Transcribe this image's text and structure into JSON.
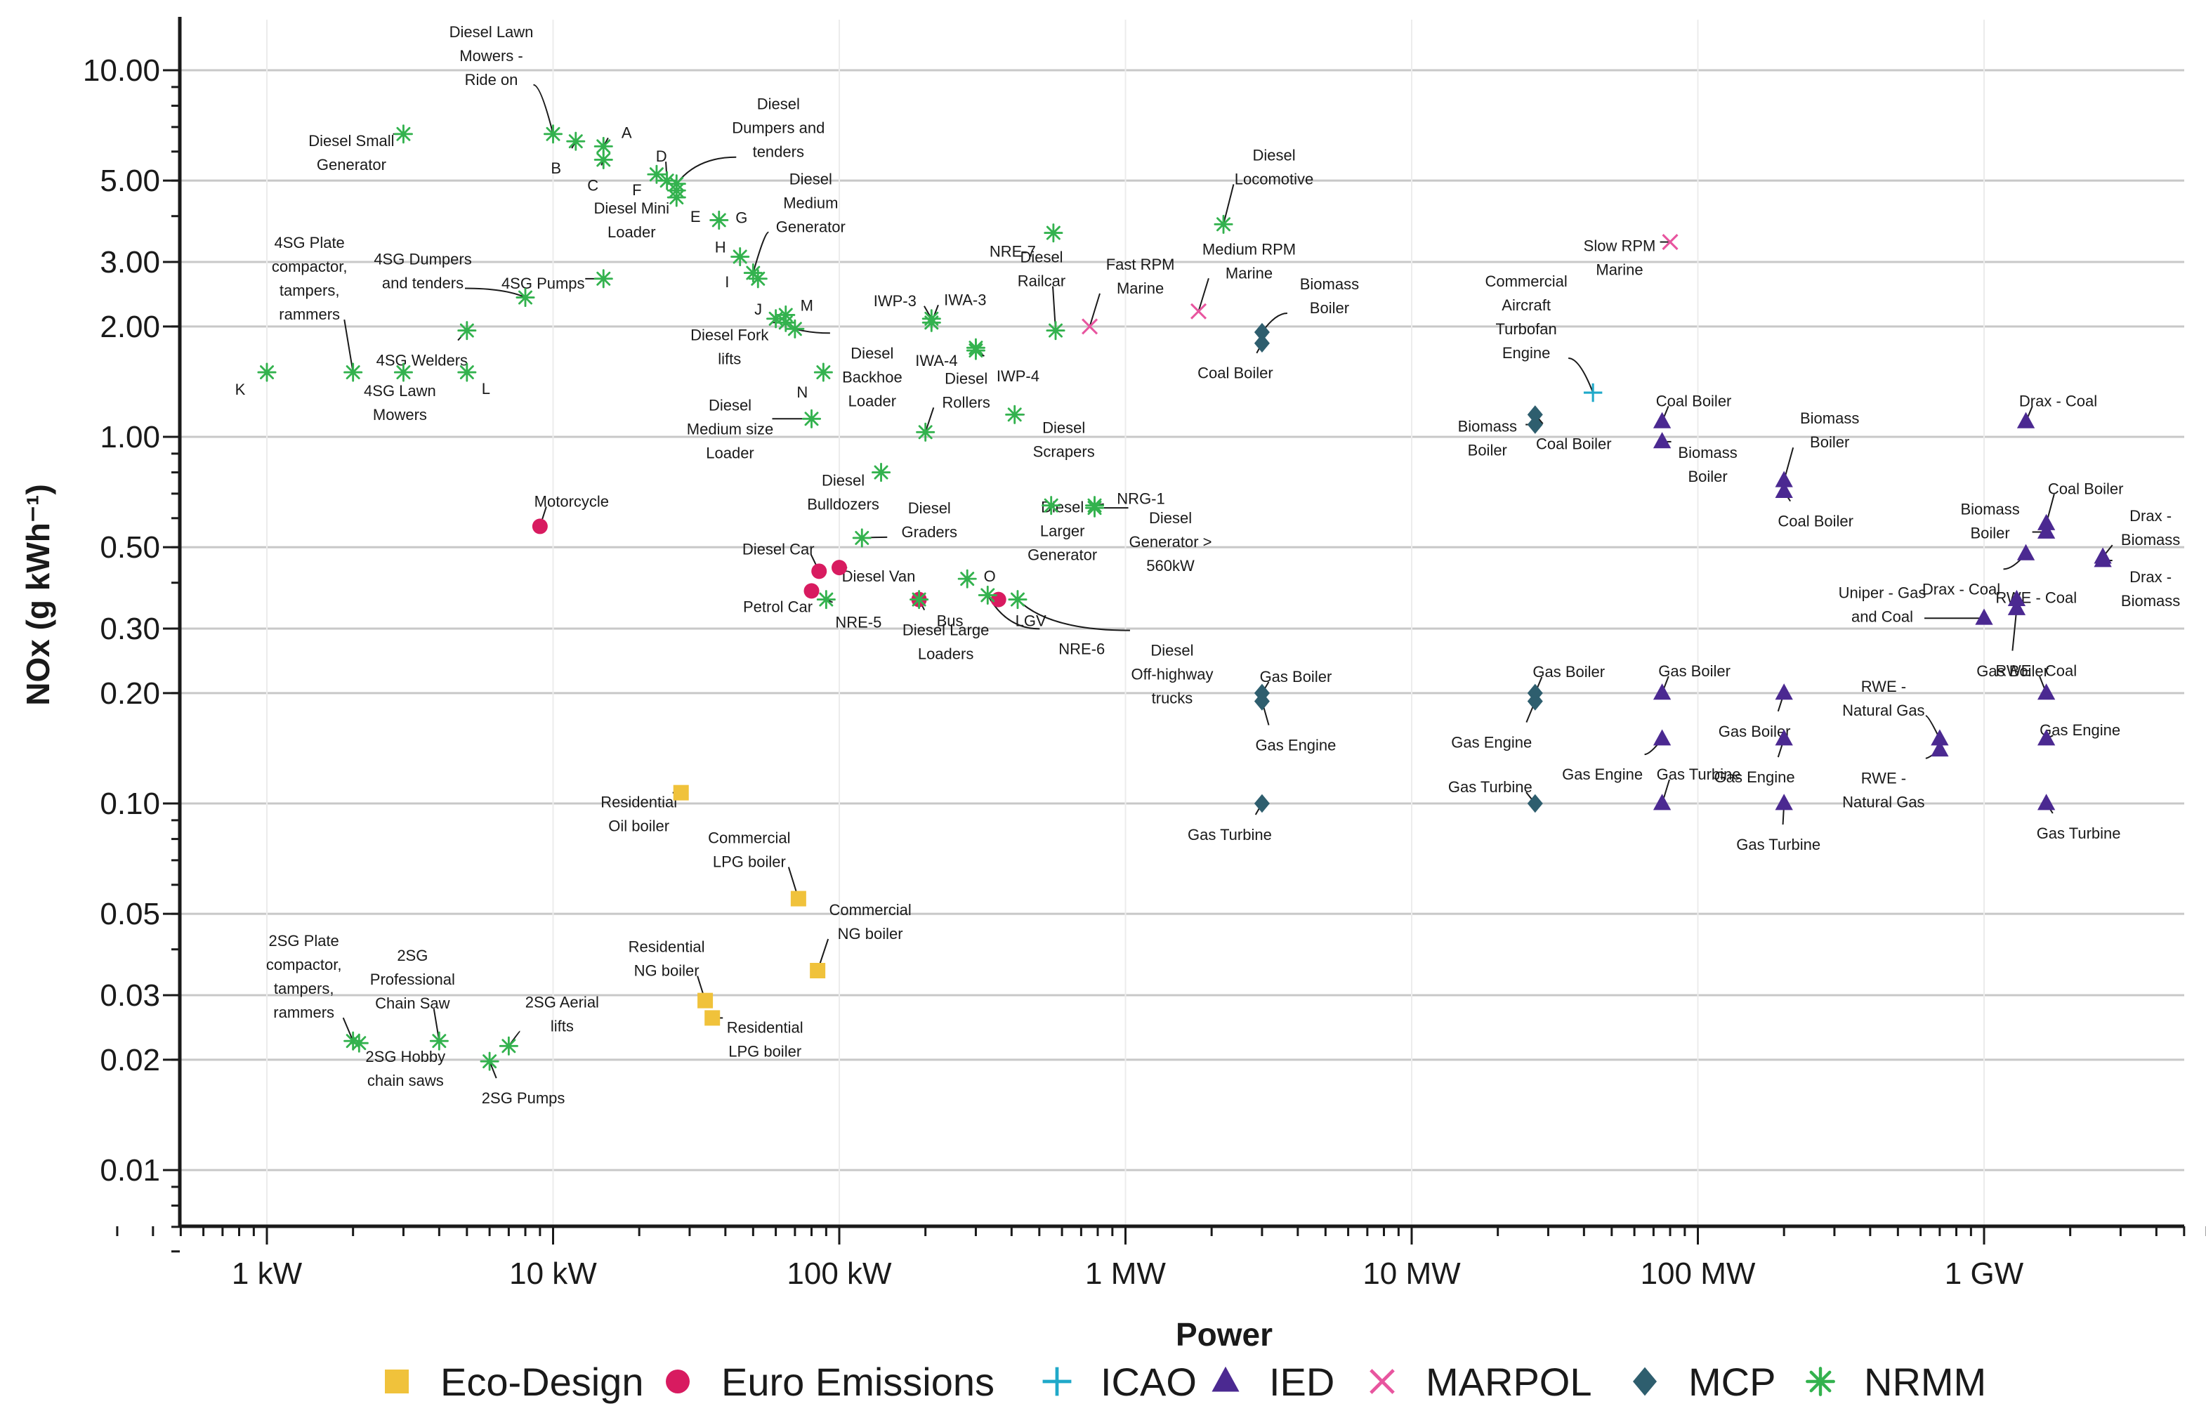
{
  "chart_data": {
    "type": "scatter",
    "title": "",
    "xlabel": "Power",
    "ylabel": "NOx (g kWh⁻¹)",
    "x_scale": "log",
    "y_scale": "log",
    "x_unit": "W",
    "y_unit": "g/kWh",
    "xlim": [
      300,
      6000000000
    ],
    "ylim": [
      0.006,
      15
    ],
    "grid": "horizontal",
    "legend_position": "bottom",
    "x_ticks": [
      {
        "value": 1000,
        "label": "1 kW"
      },
      {
        "value": 10000,
        "label": "10 kW"
      },
      {
        "value": 100000,
        "label": "100 kW"
      },
      {
        "value": 1000000,
        "label": "1 MW"
      },
      {
        "value": 10000000,
        "label": "10 MW"
      },
      {
        "value": 100000000,
        "label": "100 MW"
      },
      {
        "value": 1000000000,
        "label": "1 GW"
      }
    ],
    "y_ticks": [
      {
        "value": 0.01,
        "label": "0.01"
      },
      {
        "value": 0.02,
        "label": "0.02"
      },
      {
        "value": 0.03,
        "label": "0.03"
      },
      {
        "value": 0.05,
        "label": "0.05"
      },
      {
        "value": 0.1,
        "label": "0.10"
      },
      {
        "value": 0.2,
        "label": "0.20"
      },
      {
        "value": 0.3,
        "label": "0.30"
      },
      {
        "value": 0.5,
        "label": "0.50"
      },
      {
        "value": 1,
        "label": "1.00"
      },
      {
        "value": 2,
        "label": "2.00"
      },
      {
        "value": 3,
        "label": "3.00"
      },
      {
        "value": 5,
        "label": "5.00"
      },
      {
        "value": 10,
        "label": "10.00"
      }
    ],
    "series": [
      {
        "name": "Eco-Design",
        "marker": "square",
        "color": "#f0c23b",
        "points": [
          {
            "x": 28000,
            "y": 0.107,
            "label": "Residential\nOil boiler"
          },
          {
            "x": 72000,
            "y": 0.055,
            "label": "Commercial\nLPG boiler"
          },
          {
            "x": 84000,
            "y": 0.035,
            "label": "Commercial\nNG boiler"
          },
          {
            "x": 34000,
            "y": 0.029,
            "label": "Residential\nNG boiler"
          },
          {
            "x": 36000,
            "y": 0.026,
            "label": "Residential\nLPG boiler"
          }
        ]
      },
      {
        "name": "Euro Emissions",
        "marker": "circle",
        "color": "#d81b60",
        "points": [
          {
            "x": 9000,
            "y": 0.57,
            "label": "Motorcycle"
          },
          {
            "x": 85000,
            "y": 0.43,
            "label": "Diesel Car"
          },
          {
            "x": 80000,
            "y": 0.38,
            "label": "Petrol Car"
          },
          {
            "x": 100000,
            "y": 0.44,
            "label": "Diesel Van"
          },
          {
            "x": 190000,
            "y": 0.36,
            "label": "Bus"
          },
          {
            "x": 360000,
            "y": 0.36,
            "label": "LGV"
          }
        ]
      },
      {
        "name": "ICAO",
        "marker": "plus",
        "color": "#1fa9c9",
        "points": [
          {
            "x": 43000000,
            "y": 1.32,
            "label": "Commercial\nAircraft\nTurbofan\nEngine"
          }
        ]
      },
      {
        "name": "IED",
        "marker": "triangle",
        "color": "#4b2991",
        "points": [
          {
            "x": 75000000,
            "y": 1.1,
            "label": "Coal Boiler"
          },
          {
            "x": 75000000,
            "y": 0.97,
            "label": "Biomass\nBoiler"
          },
          {
            "x": 200000000,
            "y": 0.76,
            "label": "Biomass\nBoiler"
          },
          {
            "x": 200000000,
            "y": 0.71,
            "label": "Coal Boiler"
          },
          {
            "x": 1400000000,
            "y": 1.1,
            "label": "Drax - Coal"
          },
          {
            "x": 1650000000,
            "y": 0.58,
            "label": "Coal Boiler"
          },
          {
            "x": 1650000000,
            "y": 0.55,
            "label": "Biomass\nBoiler"
          },
          {
            "x": 1400000000,
            "y": 0.48,
            "label": "Drax - Coal"
          },
          {
            "x": 2600000000,
            "y": 0.47,
            "label": "Drax -\nBiomass"
          },
          {
            "x": 2600000000,
            "y": 0.46,
            "label": "Drax -\nBiomass"
          },
          {
            "x": 1300000000,
            "y": 0.36,
            "label": "RWE - Coal"
          },
          {
            "x": 1300000000,
            "y": 0.34,
            "label": "RWE - Coal"
          },
          {
            "x": 1000000000,
            "y": 0.32,
            "label": "Uniper - Gas\nand Coal"
          },
          {
            "x": 75000000,
            "y": 0.2,
            "label": "Gas Boiler"
          },
          {
            "x": 75000000,
            "y": 0.15,
            "label": "Gas Engine"
          },
          {
            "x": 75000000,
            "y": 0.1,
            "label": "Gas Turbine"
          },
          {
            "x": 200000000,
            "y": 0.2,
            "label": "Gas Boiler"
          },
          {
            "x": 200000000,
            "y": 0.15,
            "label": "Gas Engine"
          },
          {
            "x": 200000000,
            "y": 0.1,
            "label": "Gas Turbine"
          },
          {
            "x": 700000000,
            "y": 0.15,
            "label": "RWE -\nNatural Gas"
          },
          {
            "x": 700000000,
            "y": 0.14,
            "label": "RWE -\nNatural Gas"
          },
          {
            "x": 1650000000,
            "y": 0.2,
            "label": "Gas Boiler"
          },
          {
            "x": 1650000000,
            "y": 0.15,
            "label": "Gas Engine"
          },
          {
            "x": 1650000000,
            "y": 0.1,
            "label": "Gas Turbine"
          }
        ]
      },
      {
        "name": "MARPOL",
        "marker": "cross",
        "color": "#e8559f",
        "points": [
          {
            "x": 80000000,
            "y": 3.4,
            "label": "Slow RPM\nMarine"
          },
          {
            "x": 1800000,
            "y": 2.2,
            "label": "Medium RPM\nMarine"
          },
          {
            "x": 750000,
            "y": 2.0,
            "label": "Fast RPM\nMarine"
          }
        ]
      },
      {
        "name": "MCP",
        "marker": "diamond",
        "color": "#2e5e6e",
        "points": [
          {
            "x": 3000000,
            "y": 1.93,
            "label": "Biomass\nBoiler"
          },
          {
            "x": 3000000,
            "y": 1.8,
            "label": "Coal Boiler"
          },
          {
            "x": 27000000,
            "y": 1.15,
            "label": "Coal Boiler"
          },
          {
            "x": 27000000,
            "y": 1.08,
            "label": "Biomass\nBoiler"
          },
          {
            "x": 3000000,
            "y": 0.2,
            "label": "Gas Boiler"
          },
          {
            "x": 3000000,
            "y": 0.19,
            "label": "Gas Engine"
          },
          {
            "x": 3000000,
            "y": 0.1,
            "label": "Gas Turbine"
          },
          {
            "x": 27000000,
            "y": 0.2,
            "label": "Gas Boiler"
          },
          {
            "x": 27000000,
            "y": 0.19,
            "label": "Gas Engine"
          },
          {
            "x": 27000000,
            "y": 0.1,
            "label": "Gas Turbine"
          }
        ]
      },
      {
        "name": "NRMM",
        "marker": "asterisk",
        "color": "#33b24e",
        "points": [
          {
            "x": 3000,
            "y": 6.7,
            "label": "Diesel Small\nGenerator"
          },
          {
            "x": 10000,
            "y": 6.7,
            "label": "Diesel Lawn\nMowers -\nRide on"
          },
          {
            "x": 12000,
            "y": 6.4,
            "label": "B"
          },
          {
            "x": 15000,
            "y": 6.2,
            "label": "A"
          },
          {
            "x": 15000,
            "y": 5.7,
            "label": "C"
          },
          {
            "x": 23000,
            "y": 5.2,
            "label": "F"
          },
          {
            "x": 25000,
            "y": 5.0,
            "label": "D"
          },
          {
            "x": 27000,
            "y": 4.9,
            "label": "Diesel\nDumpers and\ntenders"
          },
          {
            "x": 27000,
            "y": 4.5,
            "label": "E"
          },
          {
            "x": 27000,
            "y": 4.7,
            "label": "Diesel Mini\nLoader"
          },
          {
            "x": 38000,
            "y": 3.9,
            "label": "G"
          },
          {
            "x": 45000,
            "y": 3.1,
            "label": "H"
          },
          {
            "x": 52000,
            "y": 2.7,
            "label": "I"
          },
          {
            "x": 50000,
            "y": 2.8,
            "label": "Diesel\nMedium\nGenerator"
          },
          {
            "x": 15000,
            "y": 2.7,
            "label": "4SG Pumps"
          },
          {
            "x": 8000,
            "y": 2.4,
            "label": "4SG Dumpers\nand tenders"
          },
          {
            "x": 5000,
            "y": 1.95,
            "label": "4SG Welders"
          },
          {
            "x": 1000,
            "y": 1.5,
            "label": "K"
          },
          {
            "x": 2000,
            "y": 1.5,
            "label": "4SG Plate\ncompactor,\ntampers,\nrammers"
          },
          {
            "x": 3000,
            "y": 1.5,
            "label": "4SG Lawn\nMowers"
          },
          {
            "x": 5000,
            "y": 1.5,
            "label": "L"
          },
          {
            "x": 60000,
            "y": 2.1,
            "label": "J"
          },
          {
            "x": 65000,
            "y": 2.15,
            "label": "M"
          },
          {
            "x": 65000,
            "y": 2.05,
            "label": "Diesel Fork\nlifts"
          },
          {
            "x": 70000,
            "y": 1.97,
            "label": "Diesel\nBackhoe\nLoader"
          },
          {
            "x": 88000,
            "y": 1.5,
            "label": "N"
          },
          {
            "x": 80000,
            "y": 1.12,
            "label": "Diesel\nMedium size\nLoader"
          },
          {
            "x": 210000,
            "y": 2.1,
            "label": "IWP-3"
          },
          {
            "x": 210000,
            "y": 2.05,
            "label": "IWA-3"
          },
          {
            "x": 300000,
            "y": 1.75,
            "label": "IWA-4"
          },
          {
            "x": 300000,
            "y": 1.72,
            "label": "IWP-4"
          },
          {
            "x": 560000,
            "y": 3.6,
            "label": "NRE-7"
          },
          {
            "x": 570000,
            "y": 1.95,
            "label": "Diesel\nRailcar"
          },
          {
            "x": 200000,
            "y": 1.03,
            "label": "Diesel\nRollers"
          },
          {
            "x": 410000,
            "y": 1.15,
            "label": "Diesel\nScrapers"
          },
          {
            "x": 2200000,
            "y": 3.8,
            "label": "Diesel\nLocomotive"
          },
          {
            "x": 140000,
            "y": 0.8,
            "label": "Diesel\nBulldozers"
          },
          {
            "x": 120000,
            "y": 0.53,
            "label": "Diesel\nGraders"
          },
          {
            "x": 550000,
            "y": 0.65,
            "label": "Diesel\nLarger\nGenerator"
          },
          {
            "x": 780000,
            "y": 0.65,
            "label": "NRG-1"
          },
          {
            "x": 780000,
            "y": 0.64,
            "label": "Diesel\nGenerator >\n560kW"
          },
          {
            "x": 280000,
            "y": 0.41,
            "label": "O"
          },
          {
            "x": 330000,
            "y": 0.37,
            "label": "NRE-6"
          },
          {
            "x": 420000,
            "y": 0.36,
            "label": "Diesel\nOff-highway\ntrucks"
          },
          {
            "x": 90000,
            "y": 0.36,
            "label": "NRE-5"
          },
          {
            "x": 190000,
            "y": 0.36,
            "label": "Diesel Large\nLoaders"
          },
          {
            "x": 2000,
            "y": 0.0225,
            "label": "2SG Plate\ncompactor,\ntampers,\nrammers"
          },
          {
            "x": 2100,
            "y": 0.0222,
            "label": "2SG Hobby\nchain saws"
          },
          {
            "x": 4000,
            "y": 0.0225,
            "label": "2SG\nProfessional\nChain Saw"
          },
          {
            "x": 6000,
            "y": 0.0198,
            "label": "2SG Pumps"
          },
          {
            "x": 7000,
            "y": 0.0218,
            "label": "2SG Aerial\nlifts"
          }
        ]
      }
    ]
  }
}
